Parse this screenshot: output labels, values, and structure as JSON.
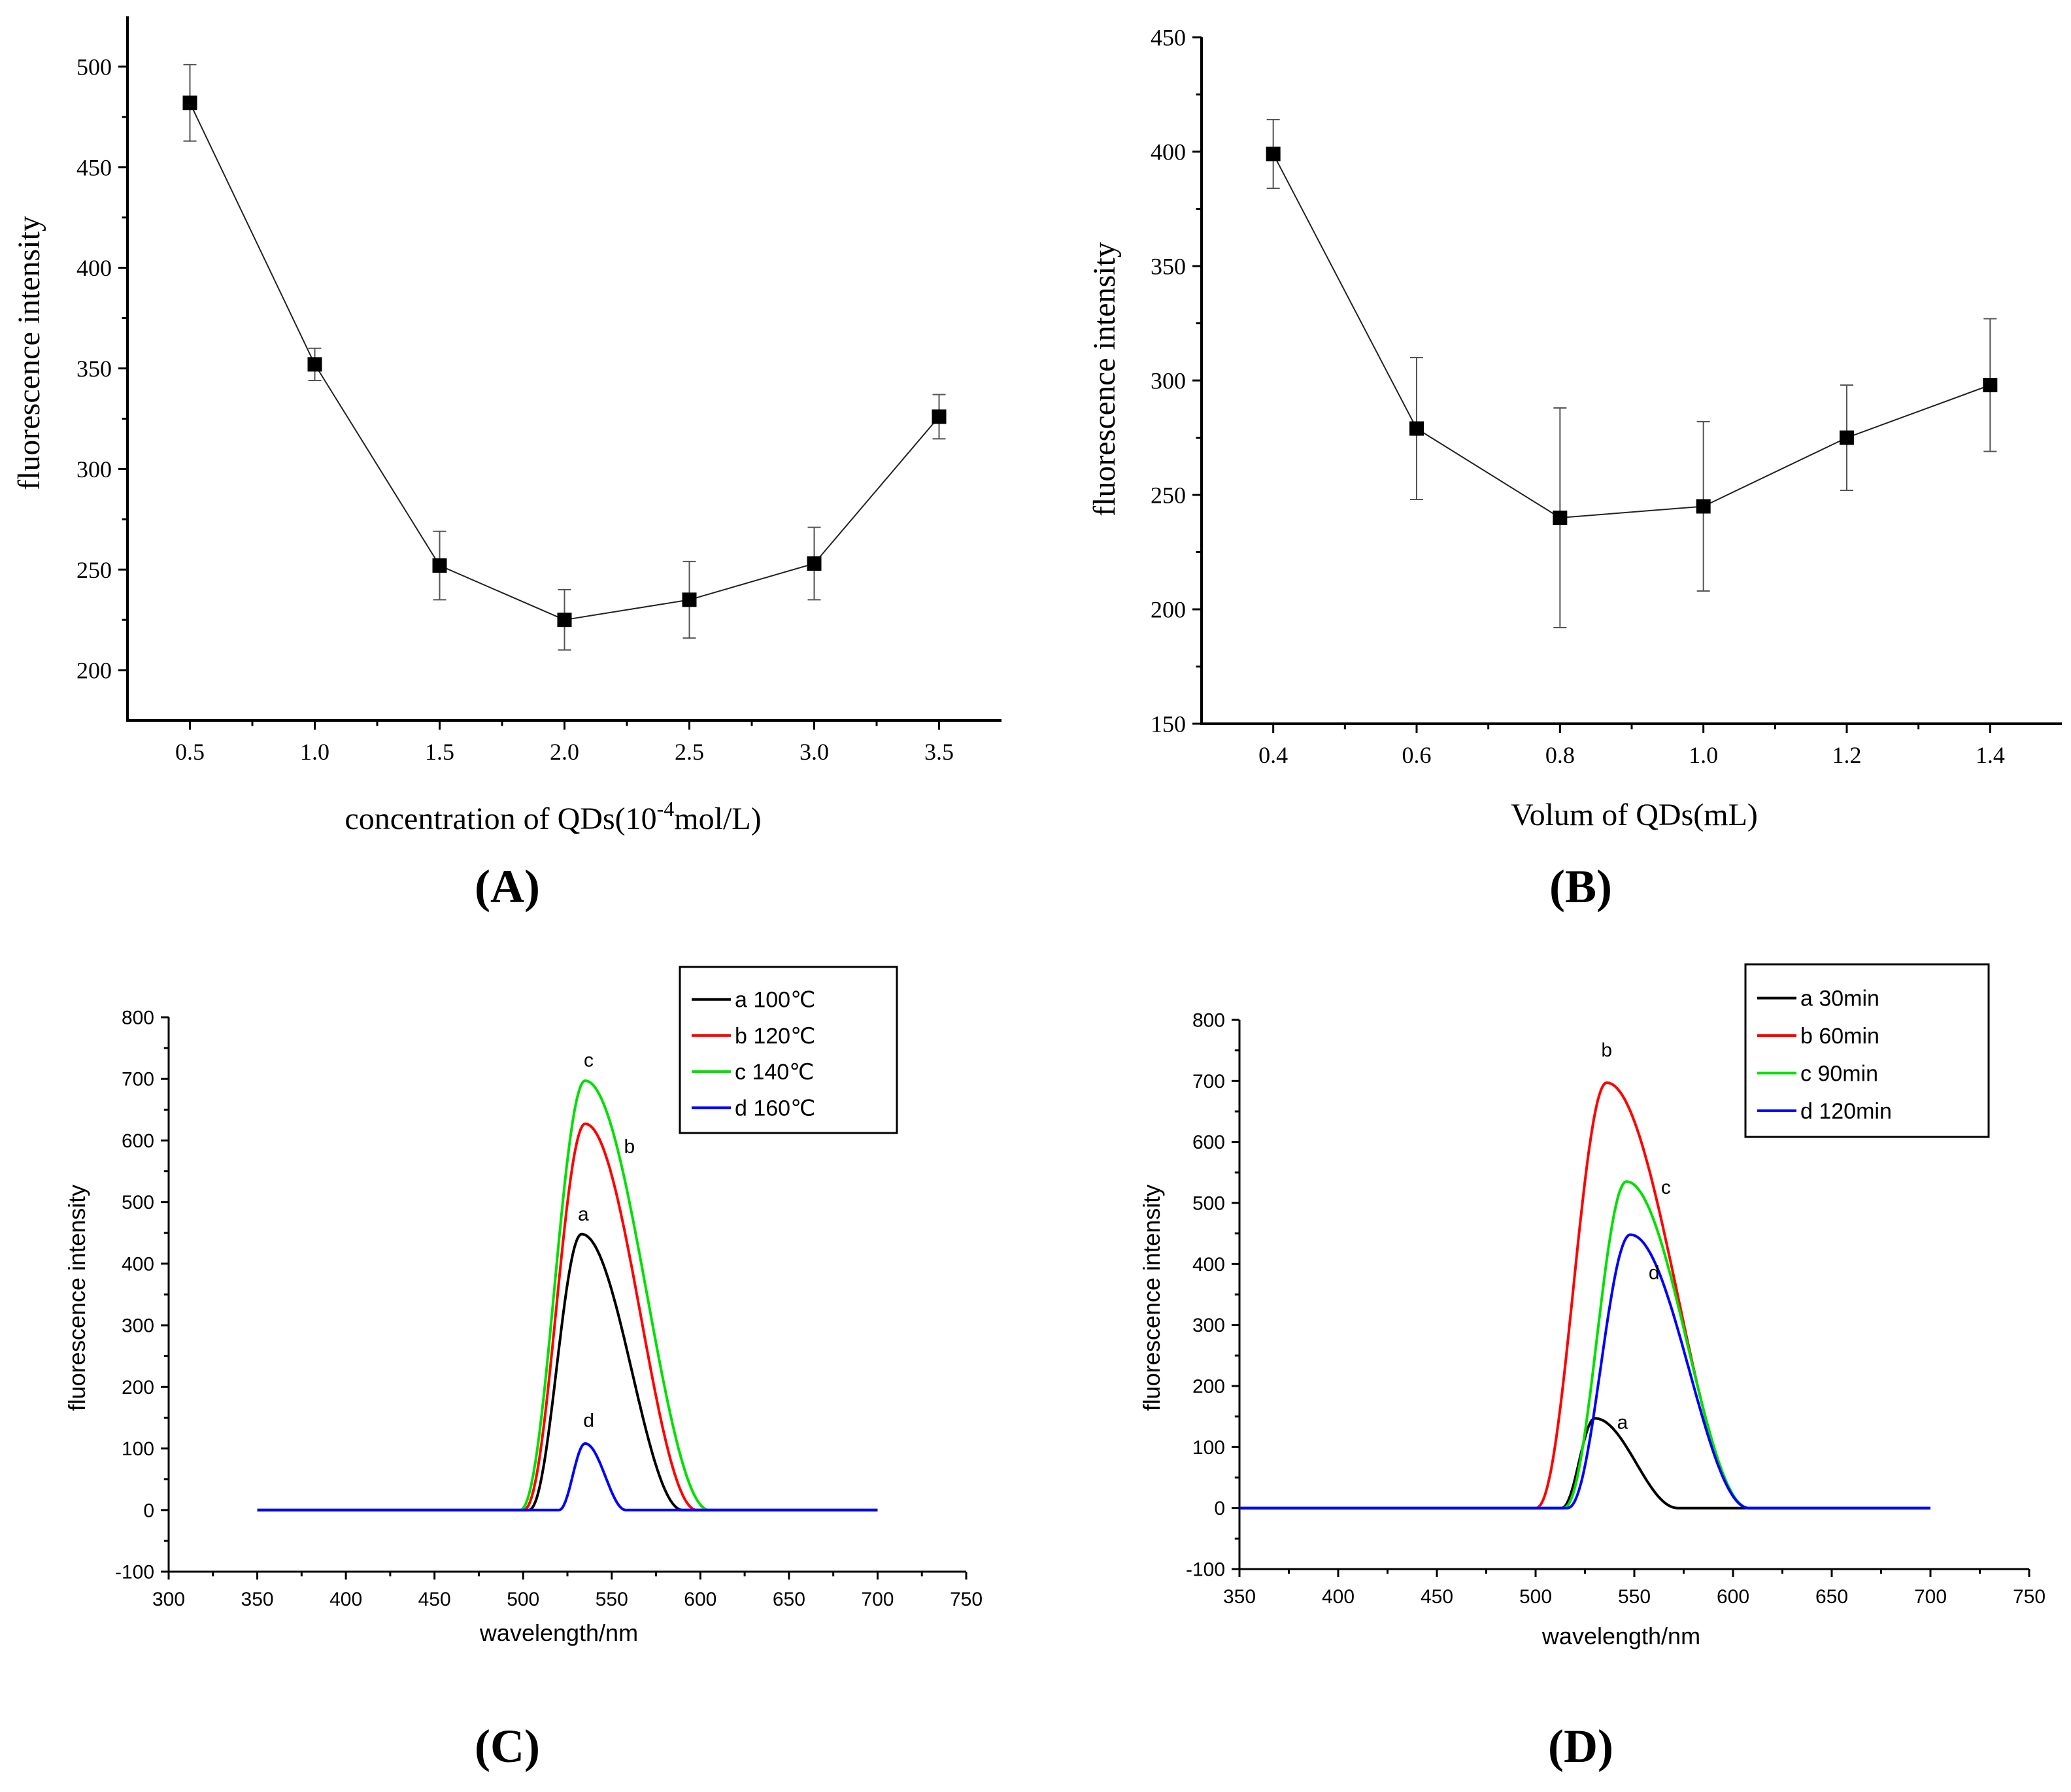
{
  "chart_data": [
    {
      "id": "A",
      "type": "scatter",
      "panel_label": "(A)",
      "xlabel_prefix": "concentration of QDs(10",
      "xlabel_sup": "-4",
      "xlabel_suffix": "mol/L)",
      "ylabel": "fluorescence intensity",
      "xlim": [
        0.25,
        3.75
      ],
      "ylim": [
        175,
        525
      ],
      "xticks": [
        0.5,
        1.0,
        1.5,
        2.0,
        2.5,
        3.0,
        3.5
      ],
      "xtick_labels": [
        "0.5",
        "1.0",
        "1.5",
        "2.0",
        "2.5",
        "3.0",
        "3.5"
      ],
      "yticks": [
        200,
        250,
        300,
        350,
        400,
        450,
        500
      ],
      "ytick_labels": [
        "200",
        "250",
        "300",
        "350",
        "400",
        "450",
        "500"
      ],
      "series": [
        {
          "name": "A",
          "color": "#000000",
          "x": [
            0.5,
            1.0,
            1.5,
            2.0,
            2.5,
            3.0,
            3.5
          ],
          "y": [
            482,
            352,
            252,
            225,
            235,
            253,
            326
          ],
          "err": [
            19,
            8,
            17,
            15,
            19,
            18,
            11
          ]
        }
      ]
    },
    {
      "id": "B",
      "type": "scatter",
      "panel_label": "(B)",
      "xlabel": "Volum of QDs(mL)",
      "ylabel": "fluorescence intensity",
      "xlim": [
        0.3,
        1.5
      ],
      "ylim": [
        150,
        450
      ],
      "xticks": [
        0.4,
        0.6,
        0.8,
        1.0,
        1.2,
        1.4
      ],
      "xtick_labels": [
        "0.4",
        "0.6",
        "0.8",
        "1.0",
        "1.2",
        "1.4"
      ],
      "yticks": [
        150,
        200,
        250,
        300,
        350,
        400,
        450
      ],
      "ytick_labels": [
        "150",
        "200",
        "250",
        "300",
        "350",
        "400",
        "450"
      ],
      "series": [
        {
          "name": "B",
          "color": "#000000",
          "x": [
            0.4,
            0.6,
            0.8,
            1.0,
            1.2,
            1.4
          ],
          "y": [
            399,
            279,
            240,
            245,
            275,
            298
          ],
          "err": [
            15,
            31,
            48,
            37,
            23,
            29
          ]
        }
      ]
    },
    {
      "id": "C",
      "type": "line",
      "panel_label": "(C)",
      "xlabel": "wavelength/nm",
      "ylabel": "fluorescence intensity",
      "xlim": [
        300,
        750
      ],
      "ylim": [
        -100,
        800
      ],
      "xticks": [
        300,
        350,
        400,
        450,
        500,
        550,
        600,
        650,
        700,
        750
      ],
      "xtick_labels": [
        "300",
        "350",
        "400",
        "450",
        "500",
        "550",
        "600",
        "650",
        "700",
        "750"
      ],
      "yticks": [
        -100,
        0,
        100,
        200,
        300,
        400,
        500,
        600,
        700,
        800
      ],
      "ytick_labels": [
        "-100",
        "0",
        "100",
        "200",
        "300",
        "400",
        "500",
        "600",
        "700",
        "800"
      ],
      "x_range": [
        350,
        700
      ],
      "legend_position": "top-right",
      "legend": [
        "a  100℃",
        "b  120℃",
        "c  140℃",
        "d  160℃"
      ],
      "series": [
        {
          "name": "a",
          "color": "#000000",
          "peak_x": 533,
          "peak_y": 448,
          "start": 503,
          "end": 590
        },
        {
          "name": "b",
          "color": "#ff0000",
          "peak_x": 535,
          "peak_y": 627,
          "start": 500,
          "end": 598
        },
        {
          "name": "c",
          "color": "#00e000",
          "peak_x": 535,
          "peak_y": 697,
          "start": 498,
          "end": 605
        },
        {
          "name": "d",
          "color": "#0000ff",
          "peak_x": 535,
          "peak_y": 108,
          "start": 520,
          "end": 558
        }
      ],
      "annotations": [
        {
          "text": "c",
          "x": 537,
          "y": 720
        },
        {
          "text": "b",
          "x": 560,
          "y": 580
        },
        {
          "text": "a",
          "x": 534,
          "y": 470
        },
        {
          "text": "d",
          "x": 537,
          "y": 135
        }
      ]
    },
    {
      "id": "D",
      "type": "line",
      "panel_label": "(D)",
      "xlabel": "wavelength/nm",
      "ylabel": "fluorescence intensity",
      "xlim": [
        350,
        750
      ],
      "ylim": [
        -100,
        800
      ],
      "xticks": [
        350,
        400,
        450,
        500,
        550,
        600,
        650,
        700,
        750
      ],
      "xtick_labels": [
        "350",
        "400",
        "450",
        "500",
        "550",
        "600",
        "650",
        "700",
        "750"
      ],
      "yticks": [
        -100,
        0,
        100,
        200,
        300,
        400,
        500,
        600,
        700,
        800
      ],
      "ytick_labels": [
        "-100",
        "0",
        "100",
        "200",
        "300",
        "400",
        "500",
        "600",
        "700",
        "800"
      ],
      "x_range": [
        350,
        700
      ],
      "legend_position": "top-right",
      "legend": [
        "a  30min",
        "b  60min",
        "c  90min",
        "d  120min"
      ],
      "series": [
        {
          "name": "a",
          "color": "#000000",
          "peak_x": 530,
          "peak_y": 147,
          "start": 513,
          "end": 572
        },
        {
          "name": "b",
          "color": "#ff0000",
          "peak_x": 536,
          "peak_y": 697,
          "start": 500,
          "end": 608
        },
        {
          "name": "c",
          "color": "#00e000",
          "peak_x": 546,
          "peak_y": 535,
          "start": 514,
          "end": 608
        },
        {
          "name": "d",
          "color": "#0000ff",
          "peak_x": 548,
          "peak_y": 448,
          "start": 516,
          "end": 608
        }
      ],
      "annotations": [
        {
          "text": "b",
          "x": 536,
          "y": 740
        },
        {
          "text": "c",
          "x": 566,
          "y": 515
        },
        {
          "text": "d",
          "x": 560,
          "y": 375
        },
        {
          "text": "a",
          "x": 544,
          "y": 130
        }
      ]
    }
  ]
}
